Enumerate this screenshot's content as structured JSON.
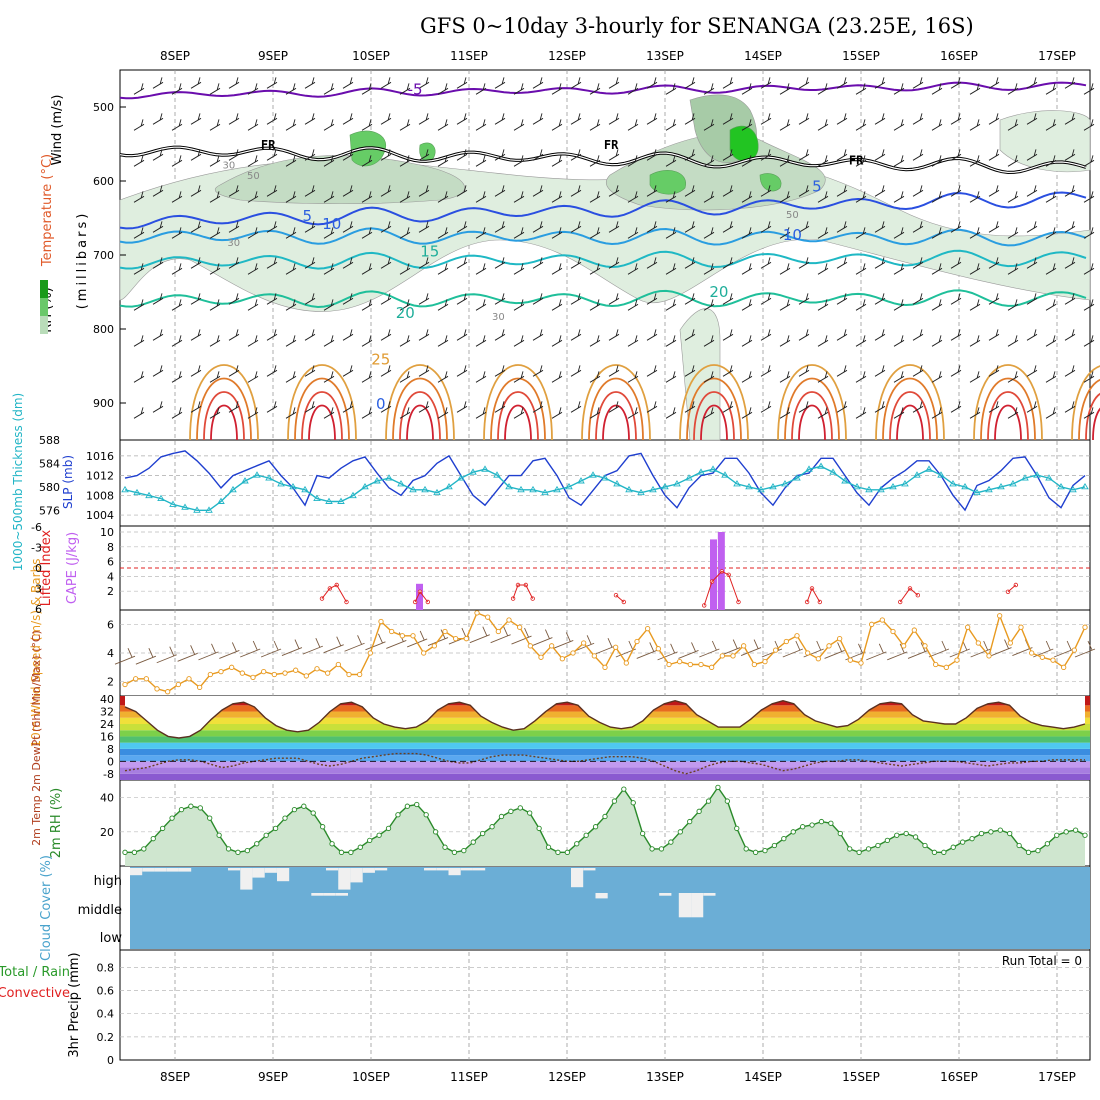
{
  "title": "GFS 0~10day 3-hourly for SENANGA (23.25E, 16S)",
  "date_labels": [
    "8SEP",
    "9SEP",
    "10SEP",
    "11SEP",
    "12SEP",
    "13SEP",
    "14SEP",
    "15SEP",
    "16SEP",
    "17SEP"
  ],
  "run_total_label": "Run Total = 0",
  "colors": {
    "slp": "#1f3fcf",
    "thickness": "#22b5c6",
    "lifted_index": "#e02020",
    "cape": "#c060f0",
    "wind_speed": "#e89a20",
    "barb": "#7a5a40",
    "rh2m_line": "#2a8a2a",
    "rh2m_fill": "#cfe6cf",
    "cloud_bg": "#6baed6",
    "cloud_block": "#f0f0f0",
    "temp_contour_low": "#6a0dad",
    "freezing": "#000000"
  },
  "chart_data": [
    {
      "id": "upper-air",
      "type": "contour",
      "ylabel": "(millibars)",
      "side_labels": [
        "Wind (m/s)",
        "Temperature (°C)",
        "RH (%)"
      ],
      "yticks": [
        500,
        600,
        700,
        800,
        900
      ],
      "ylim": [
        1000,
        450
      ],
      "isotherm_labels": [
        {
          "text": "-5",
          "day": 2.45,
          "p": 483
        },
        {
          "text": "FR",
          "day": 0.95,
          "p": 557
        },
        {
          "text": "FR",
          "day": 4.45,
          "p": 557
        },
        {
          "text": "FR",
          "day": 6.95,
          "p": 578
        },
        {
          "text": "5",
          "day": 1.35,
          "p": 654
        },
        {
          "text": "5",
          "day": 6.55,
          "p": 614
        },
        {
          "text": "10",
          "day": 1.6,
          "p": 665
        },
        {
          "text": "10",
          "day": 6.3,
          "p": 680
        },
        {
          "text": "15",
          "day": 2.6,
          "p": 702
        },
        {
          "text": "20",
          "day": 2.35,
          "p": 785
        },
        {
          "text": "20",
          "day": 5.55,
          "p": 757
        },
        {
          "text": "25",
          "day": 2.1,
          "p": 848
        },
        {
          "text": "0",
          "day": 2.1,
          "p": 908
        }
      ],
      "rh_labels": [
        {
          "text": "30",
          "day": 0.6,
          "p": 688
        },
        {
          "text": "30",
          "day": 0.55,
          "p": 583
        },
        {
          "text": "50",
          "day": 0.8,
          "p": 597
        },
        {
          "text": "30",
          "day": 3.3,
          "p": 788
        },
        {
          "text": "50",
          "day": 6.3,
          "p": 650
        }
      ]
    },
    {
      "id": "slp-thickness",
      "type": "line",
      "ylabel_left": "1000~500mb Thickness (dm)",
      "ylabel_right": "SLP (mb)",
      "left_ticks": [
        576,
        580,
        584,
        588
      ],
      "right_ticks": [
        1004,
        1008,
        1012,
        1016
      ],
      "ylim_left": [
        574,
        588
      ],
      "ylim_right": [
        1003,
        1018
      ],
      "step_hours": 3,
      "series": [
        {
          "name": "SLP (mb)",
          "values": [
            1011.5,
            1012,
            1013.5,
            1015.8,
            1016.5,
            1017,
            1015,
            1012.5,
            1009.5,
            1012,
            1013,
            1014,
            1015,
            1012,
            1009.5,
            1006,
            1012,
            1011.5,
            1013.5,
            1015,
            1015.8,
            1012.5,
            1009.5,
            1008,
            1011,
            1012,
            1014.5,
            1016,
            1012,
            1008,
            1006,
            1009,
            1012,
            1012,
            1015,
            1015.5,
            1012,
            1007.5,
            1006,
            1009,
            1012,
            1013,
            1016,
            1016.5,
            1012,
            1008,
            1005.5,
            1009.5,
            1012,
            1012.5,
            1015.5,
            1015.5,
            1012.5,
            1008.5,
            1006,
            1009.5,
            1012,
            1012.5,
            1015.5,
            1015.5,
            1012,
            1008.5,
            1006,
            1009.5,
            1011.5,
            1013,
            1015,
            1015,
            1012,
            1008,
            1005,
            1010,
            1011,
            1013,
            1015.5,
            1015.8,
            1012,
            1007.5,
            1005.5,
            1010,
            1012
          ]
        },
        {
          "name": "1000~500mb Thickness (dm)",
          "values": [
            579.5,
            579,
            578.5,
            578,
            577,
            576.5,
            576,
            576,
            577.5,
            579.5,
            581,
            582,
            581.5,
            580.5,
            580,
            579.5,
            578,
            577.5,
            577.5,
            578.5,
            580,
            581,
            581.5,
            580.5,
            579.5,
            579.5,
            579,
            580,
            581.5,
            582.5,
            583,
            582,
            580,
            579.5,
            579.5,
            579,
            579.5,
            580,
            581,
            582,
            581.5,
            580.5,
            579.5,
            579,
            579.5,
            580,
            580.5,
            581.5,
            582.5,
            583,
            582,
            580.5,
            580,
            579.5,
            580,
            580.5,
            581.5,
            583,
            583.5,
            582.5,
            581,
            580,
            579.5,
            579.5,
            580,
            580.5,
            582,
            583,
            582,
            580.5,
            580,
            579,
            579.5,
            580,
            580.5,
            581.5,
            582,
            581.5,
            580,
            579.5,
            580
          ]
        }
      ]
    },
    {
      "id": "cape-li",
      "type": "bar+line",
      "ylabel_left": "Lifted Index",
      "ylabel_right": "CAPE (J/kg)",
      "left_ticks": [
        "-6",
        "-3",
        "0",
        "3",
        "6"
      ],
      "right_ticks": [
        2,
        4,
        6,
        8,
        10
      ],
      "li_zero_line": 0,
      "cape_bars": [
        {
          "day": 2.5,
          "value": 3
        },
        {
          "day": 5.5,
          "value": 9
        },
        {
          "day": 5.58,
          "value": 10
        }
      ],
      "lifted_index_points": [
        {
          "day": 1.5,
          "value": 4.5
        },
        {
          "day": 1.58,
          "value": 3
        },
        {
          "day": 1.65,
          "value": 2.5
        },
        {
          "day": 1.75,
          "value": 5
        },
        {
          "day": 2.45,
          "value": 5
        },
        {
          "day": 2.5,
          "value": 3.5
        },
        {
          "day": 2.58,
          "value": 5
        },
        {
          "day": 3.45,
          "value": 4.5
        },
        {
          "day": 3.5,
          "value": 2.5
        },
        {
          "day": 3.58,
          "value": 2.5
        },
        {
          "day": 3.65,
          "value": 4.5
        },
        {
          "day": 4.5,
          "value": 4
        },
        {
          "day": 4.58,
          "value": 5
        },
        {
          "day": 5.4,
          "value": 5.5
        },
        {
          "day": 5.48,
          "value": 2
        },
        {
          "day": 5.58,
          "value": 0.5
        },
        {
          "day": 5.65,
          "value": 1
        },
        {
          "day": 5.75,
          "value": 5
        },
        {
          "day": 6.45,
          "value": 5
        },
        {
          "day": 6.5,
          "value": 3
        },
        {
          "day": 6.58,
          "value": 5
        },
        {
          "day": 7.4,
          "value": 5
        },
        {
          "day": 7.5,
          "value": 3
        },
        {
          "day": 7.58,
          "value": 4
        },
        {
          "day": 8.5,
          "value": 3.5
        },
        {
          "day": 8.58,
          "value": 2.5
        }
      ]
    },
    {
      "id": "wind10m",
      "type": "line",
      "ylabel": "10m Wind Speed (m/s) & Barbs",
      "yticks": [
        2,
        4,
        6
      ],
      "ylim": [
        1,
        7
      ],
      "step_hours": 3,
      "series": [
        {
          "name": "10m Wind Speed (m/s)",
          "values": [
            1.8,
            2.2,
            2.2,
            1.5,
            1.3,
            1.8,
            2.2,
            1.6,
            2.5,
            2.7,
            3.0,
            2.6,
            2.3,
            2.7,
            2.5,
            2.6,
            2.8,
            2.4,
            2.9,
            2.6,
            3.2,
            2.5,
            2.5,
            4.0,
            6.2,
            5.5,
            5.2,
            5.2,
            4.0,
            4.5,
            5.5,
            5.0,
            5.0,
            6.8,
            6.5,
            5.5,
            6.3,
            5.8,
            4.5,
            3.7,
            4.5,
            3.6,
            4.0,
            4.7,
            3.8,
            3.0,
            4.4,
            3.3,
            4.8,
            5.7,
            4.3,
            3.2,
            3.4,
            3.2,
            3.2,
            3.0,
            3.8,
            3.8,
            4.5,
            3.2,
            3.4,
            4.2,
            4.8,
            5.2,
            4.0,
            3.6,
            4.5,
            5.0,
            3.5,
            3.3,
            6.0,
            6.3,
            5.5,
            4.5,
            5.6,
            4.5,
            3.2,
            3.0,
            3.5,
            5.8,
            4.7,
            3.8,
            6.6,
            4.7,
            5.8,
            4.0,
            3.7,
            3.5,
            3.0,
            4.2,
            5.8
          ]
        },
        {
          "name": "Barbs",
          "values": [
            3.5,
            3.5,
            3.6,
            3.7,
            3.8,
            3.9,
            4.0,
            4.0,
            4.1,
            4.2,
            4.3,
            4.4,
            4.5,
            4.6,
            4.7,
            4.8,
            4.9,
            5.0,
            5.0,
            4.9,
            4.8,
            4.6,
            4.4,
            4.2,
            4.0,
            3.9,
            3.8,
            3.9,
            4.0,
            4.1,
            4.1,
            4.0,
            4.0,
            4.0,
            3.9,
            3.8,
            3.8,
            3.8,
            3.9,
            4.0,
            4.0,
            4.0,
            4.1,
            4.1,
            4.0,
            4.0,
            4.0
          ]
        }
      ]
    },
    {
      "id": "temp2m",
      "type": "filled-line",
      "ylabel": "2m Temp 2m DewPt (6hr Min/Max) (°C)",
      "yticks": [
        -8,
        0,
        8,
        16,
        24,
        32,
        40
      ],
      "ylim": [
        -12,
        42
      ],
      "series": [
        {
          "name": "2m Temp (°C)",
          "values": [
            35,
            32,
            26,
            20,
            16,
            15,
            16,
            20,
            27,
            33,
            37,
            38,
            35,
            28,
            23,
            20,
            19,
            20,
            25,
            32,
            37,
            38,
            35,
            28,
            24,
            22,
            21,
            22,
            26,
            33,
            37,
            38,
            36,
            29,
            25,
            22,
            20,
            21,
            26,
            32,
            37,
            38,
            36,
            29,
            25,
            22,
            21,
            22,
            26,
            33,
            37,
            39,
            37,
            30,
            26,
            22,
            22,
            22,
            27,
            33,
            37,
            39,
            37,
            30,
            26,
            24,
            22,
            23,
            27,
            33,
            37,
            38,
            37,
            30,
            26,
            25,
            24,
            24,
            28,
            34,
            37,
            38,
            36,
            29,
            25,
            23,
            22,
            21,
            22,
            24
          ]
        },
        {
          "name": "2m DewPt (°C)",
          "values": [
            -6,
            -5,
            -4,
            -2,
            0,
            1,
            1,
            0,
            -2,
            -4,
            -3,
            -1,
            0,
            1,
            2,
            2,
            2,
            0,
            -2,
            -3,
            -2,
            0,
            2,
            3,
            4,
            5,
            5,
            5,
            4,
            2,
            0,
            -1,
            -1,
            1,
            3,
            4,
            4,
            4,
            3,
            2,
            1,
            0,
            0,
            1,
            2,
            3,
            3,
            3,
            2,
            0,
            -3,
            -6,
            -8,
            -6,
            -3,
            -1,
            0,
            0,
            -1,
            -2,
            -4,
            -6,
            -5,
            -3,
            -1,
            0,
            0,
            1,
            1,
            0,
            -1,
            -2,
            -3,
            -2,
            -1,
            0,
            0,
            0,
            -1,
            -2,
            -3,
            -2,
            -1,
            -1,
            0,
            0,
            1,
            1,
            1,
            1
          ]
        }
      ]
    },
    {
      "id": "rh2m",
      "type": "area",
      "ylabel": "2m RH (%)",
      "yticks": [
        20,
        40
      ],
      "ylim": [
        0,
        48
      ],
      "step_hours": 3,
      "series": [
        {
          "name": "2m RH (%)",
          "values": [
            8,
            8,
            10,
            16,
            22,
            28,
            33,
            35,
            34,
            28,
            18,
            10,
            8,
            9,
            13,
            18,
            22,
            28,
            33,
            35,
            31,
            23,
            13,
            8,
            8,
            11,
            15,
            18,
            22,
            30,
            35,
            36,
            30,
            20,
            11,
            8,
            9,
            14,
            19,
            23,
            29,
            32,
            34,
            31,
            22,
            11,
            8,
            8,
            13,
            18,
            23,
            29,
            38,
            45,
            37,
            19,
            10,
            10,
            14,
            20,
            26,
            32,
            38,
            46,
            38,
            22,
            10,
            8,
            9,
            12,
            16,
            20,
            23,
            24,
            26,
            25,
            19,
            10,
            8,
            10,
            12,
            15,
            18,
            19,
            17,
            12,
            8,
            8,
            11,
            14,
            16,
            19,
            20,
            21,
            19,
            12,
            8,
            9,
            13,
            18,
            20,
            21,
            18
          ]
        }
      ]
    },
    {
      "id": "cloud-cover",
      "type": "heatmap",
      "ylabel": "Cloud Cover (%)",
      "levels": [
        "high",
        "middle",
        "low"
      ],
      "high_blocks": [
        {
          "day": 0.0,
          "value": 30
        },
        {
          "day": 0.125,
          "value": 15
        },
        {
          "day": 0.25,
          "value": 15
        },
        {
          "day": 0.375,
          "value": 15
        },
        {
          "day": 0.5,
          "value": 15
        },
        {
          "day": 1.0,
          "value": 10
        },
        {
          "day": 1.125,
          "value": 90
        },
        {
          "day": 1.25,
          "value": 40
        },
        {
          "day": 1.375,
          "value": 20
        },
        {
          "day": 1.5,
          "value": 55
        },
        {
          "day": 2.0,
          "value": 10
        },
        {
          "day": 2.125,
          "value": 90
        },
        {
          "day": 2.25,
          "value": 60
        },
        {
          "day": 2.375,
          "value": 20
        },
        {
          "day": 2.5,
          "value": 10
        },
        {
          "day": 3.0,
          "value": 10
        },
        {
          "day": 3.125,
          "value": 10
        },
        {
          "day": 3.25,
          "value": 30
        },
        {
          "day": 3.375,
          "value": 10
        },
        {
          "day": 3.5,
          "value": 10
        },
        {
          "day": 4.5,
          "value": 80
        },
        {
          "day": 4.625,
          "value": 10
        }
      ],
      "middle_blocks": [
        {
          "day": 1.85,
          "value": 10
        },
        {
          "day": 1.975,
          "value": 10
        },
        {
          "day": 2.1,
          "value": 10
        },
        {
          "day": 4.75,
          "value": 20
        },
        {
          "day": 5.4,
          "value": 10
        },
        {
          "day": 5.6,
          "value": 90
        },
        {
          "day": 5.725,
          "value": 90
        },
        {
          "day": 5.85,
          "value": 10
        }
      ],
      "low_blocks": []
    },
    {
      "id": "precip3hr",
      "type": "bar",
      "ylabel": "3hr Precip (mm)",
      "side_labels": [
        "Total / Rain",
        "Convective"
      ],
      "yticks": [
        "0",
        "0.2",
        "0.4",
        "0.6",
        "0.8"
      ],
      "ylim": [
        0,
        0.95
      ],
      "values": []
    }
  ]
}
